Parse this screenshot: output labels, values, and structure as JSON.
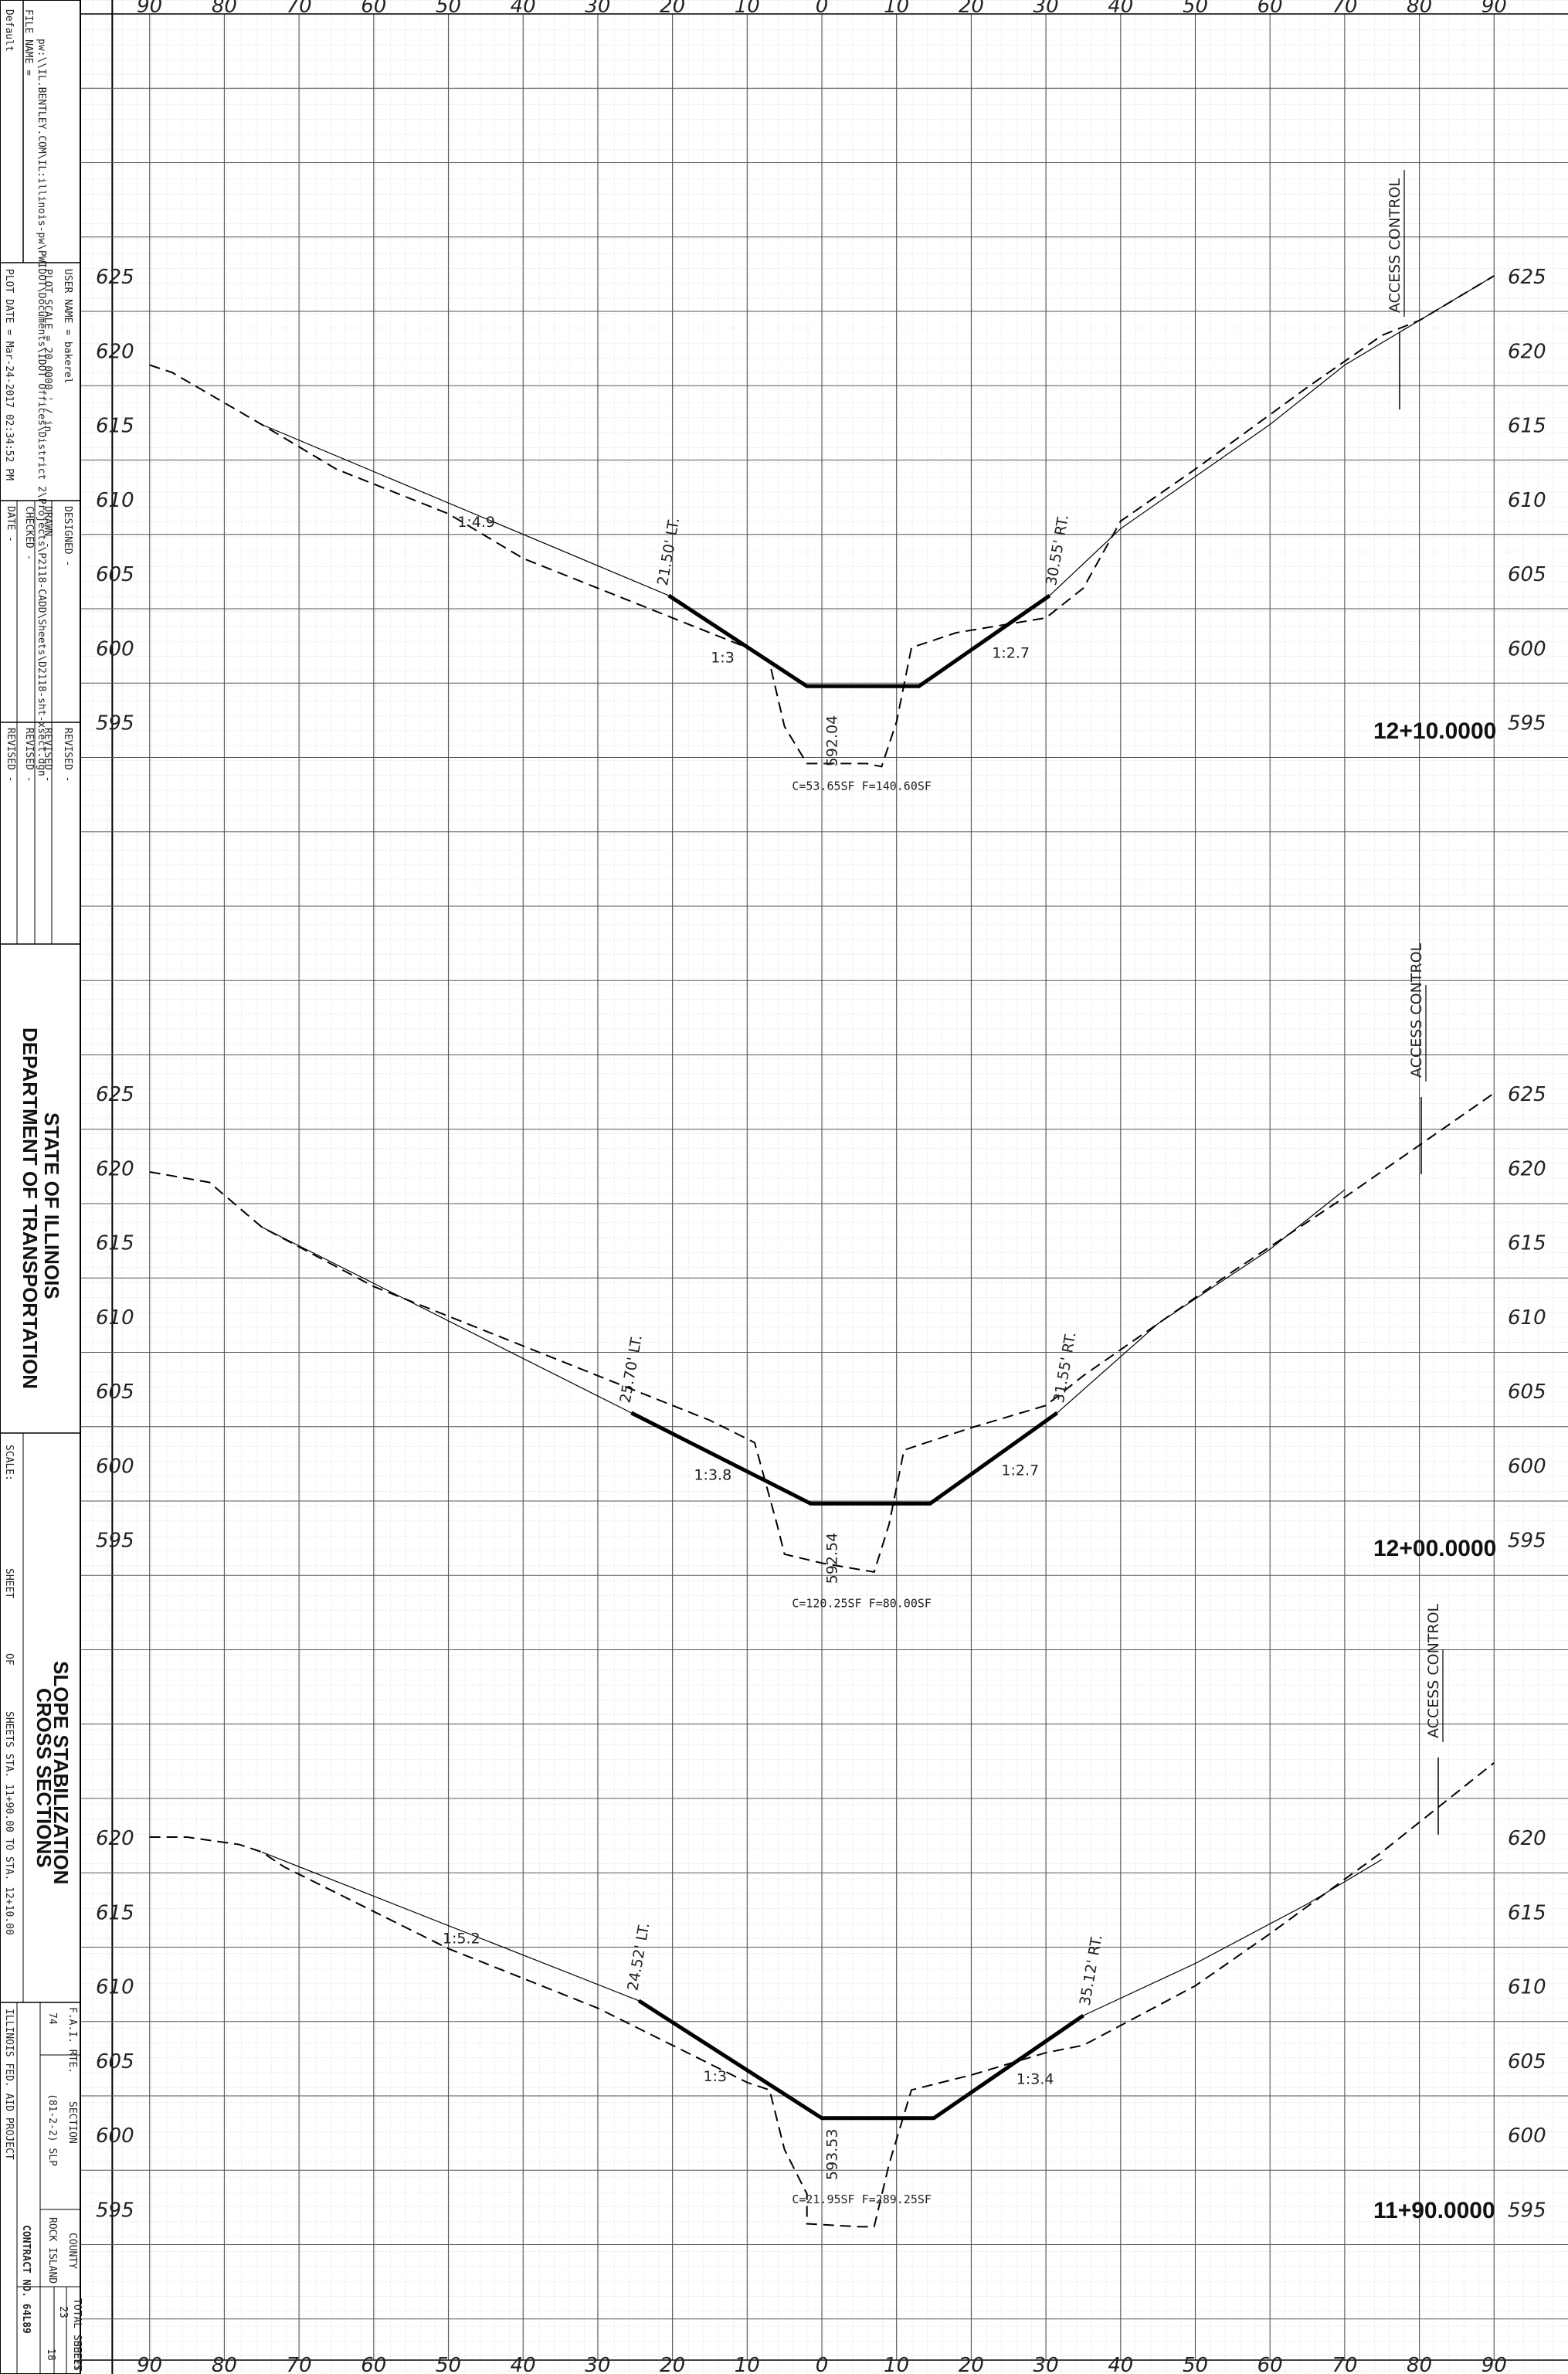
{
  "x_axis_labels": [
    "90",
    "80",
    "70",
    "60",
    "50",
    "40",
    "30",
    "20",
    "10",
    "0",
    "10",
    "20",
    "30",
    "40",
    "50",
    "60",
    "70",
    "80",
    "90"
  ],
  "sections": [
    {
      "station": "12+10.0000",
      "elevations": [
        "625",
        "620",
        "615",
        "610",
        "605",
        "600",
        "595"
      ],
      "left_point": "21.50' LT.",
      "right_point": "30.55' RT.",
      "left_slope": "1:3",
      "right_slope": "1:2.7",
      "upper_slope": "1:4.9",
      "ditch_elev": "592.04",
      "quantities": "C=53.65SF  F=140.60SF",
      "access": "ACCESS CONTROL",
      "proposed": [
        [
          -20.5,
          603.5
        ],
        [
          -2,
          597.4
        ],
        [
          13,
          597.4
        ],
        [
          30.5,
          603.5
        ]
      ],
      "existing": [
        [
          -90,
          619
        ],
        [
          -87,
          618.5
        ],
        [
          -75,
          615
        ],
        [
          -65,
          612
        ],
        [
          -50,
          609
        ],
        [
          -40,
          606
        ],
        [
          -30,
          604
        ],
        [
          -20,
          602
        ],
        [
          -10,
          600
        ],
        [
          -7,
          599
        ],
        [
          -5,
          594.7
        ],
        [
          -2,
          592.2
        ],
        [
          6,
          592.2
        ],
        [
          8,
          592
        ],
        [
          10,
          595
        ],
        [
          12,
          600
        ],
        [
          18,
          601
        ],
        [
          30,
          602
        ],
        [
          35,
          604
        ],
        [
          40,
          608.5
        ],
        [
          50,
          612
        ],
        [
          65,
          617.5
        ],
        [
          75,
          621
        ],
        [
          80,
          622
        ],
        [
          85,
          623.5
        ],
        [
          90,
          625
        ]
      ],
      "existing_upper": [
        [
          -75,
          615
        ],
        [
          -20.5,
          603.5
        ]
      ],
      "existing_right_upper": [
        [
          30.5,
          603.5
        ],
        [
          40,
          608
        ],
        [
          50,
          611.5
        ],
        [
          60,
          615
        ],
        [
          70,
          619
        ],
        [
          80,
          622
        ],
        [
          90,
          625
        ]
      ]
    },
    {
      "station": "12+00.0000",
      "elevations": [
        "625",
        "620",
        "615",
        "610",
        "605",
        "600",
        "595"
      ],
      "left_point": "25.70' LT.",
      "right_point": "31.55' RT.",
      "left_slope": "1:3.8",
      "right_slope": "1:2.7",
      "upper_slope": "",
      "ditch_elev": "592.54",
      "quantities": "C=120.25SF  F=80.00SF",
      "access": "ACCESS CONTROL",
      "proposed": [
        [
          -25.5,
          603.5
        ],
        [
          -1.5,
          597.4
        ],
        [
          14.5,
          597.4
        ],
        [
          31.5,
          603.5
        ]
      ],
      "existing": [
        [
          -90,
          619.7
        ],
        [
          -82,
          619
        ],
        [
          -75,
          616
        ],
        [
          -60,
          612
        ],
        [
          -45,
          609
        ],
        [
          -25,
          605
        ],
        [
          -15,
          603
        ],
        [
          -9,
          601.5
        ],
        [
          -6,
          596
        ],
        [
          -5,
          594
        ],
        [
          0,
          593.4
        ],
        [
          7,
          592.8
        ],
        [
          9,
          596
        ],
        [
          11,
          601
        ],
        [
          20,
          602.5
        ],
        [
          30,
          604
        ],
        [
          35,
          606
        ],
        [
          45,
          609.5
        ],
        [
          55,
          613
        ],
        [
          70,
          618
        ],
        [
          80,
          621.5
        ],
        [
          90,
          625
        ]
      ],
      "existing_upper": [
        [
          -75,
          616
        ],
        [
          -25.5,
          603.5
        ]
      ],
      "existing_right_upper": [
        [
          31.5,
          603.5
        ],
        [
          45,
          609.5
        ],
        [
          60,
          614.5
        ],
        [
          70,
          618.5
        ]
      ]
    },
    {
      "station": "11+90.0000",
      "elevations": [
        "620",
        "615",
        "610",
        "605",
        "600",
        "595"
      ],
      "left_point": "24.52' LT.",
      "right_point": "35.12' RT.",
      "left_slope": "1:3",
      "right_slope": "1:3.4",
      "upper_slope": "1:5.2",
      "ditch_elev": "593.53",
      "quantities": "C=21.95SF  F=289.25SF",
      "access": "ACCESS CONTROL",
      "proposed": [
        [
          -24.5,
          609
        ],
        [
          0,
          601.1
        ],
        [
          15,
          601.1
        ],
        [
          35,
          608
        ]
      ],
      "existing": [
        [
          -90,
          620
        ],
        [
          -85,
          620
        ],
        [
          -78,
          619.5
        ],
        [
          -75,
          619
        ],
        [
          -72,
          618
        ],
        [
          -60,
          615
        ],
        [
          -50,
          612.5
        ],
        [
          -30,
          608.5
        ],
        [
          -20,
          606
        ],
        [
          -10,
          603.5
        ],
        [
          -7,
          603
        ],
        [
          -5,
          599
        ],
        [
          -2,
          596
        ],
        [
          -2,
          594
        ],
        [
          5,
          593.8
        ],
        [
          7,
          593.8
        ],
        [
          9,
          598
        ],
        [
          12,
          603
        ],
        [
          20,
          604
        ],
        [
          30,
          605.5
        ],
        [
          35,
          606
        ],
        [
          50,
          610
        ],
        [
          60,
          613.5
        ],
        [
          75,
          619
        ],
        [
          80,
          621
        ],
        [
          90,
          625
        ]
      ],
      "existing_upper": [
        [
          -75,
          619
        ],
        [
          -24.5,
          609
        ]
      ],
      "existing_right_upper": [
        [
          35,
          608
        ],
        [
          50,
          611.5
        ],
        [
          65,
          615.5
        ],
        [
          75,
          618.5
        ]
      ]
    }
  ],
  "title_block": {
    "file_name": "FILE NAME =",
    "file_path": "pw:\\\\IL.BENTLEY.COM\\IL:illinois-pw\\PWIDOT\\Documents\\IDOT Offices\\District 2\\Projects\\P2118-CADD\\Sheets\\D2118-sht-xsect.dgn",
    "default": "Default",
    "user_name": "USER NAME = bakerel",
    "plot_scale": "PLOT SCALE = 20.0000 ' / in.",
    "plot_date": "PLOT DATE = Mar-24-2017 02:34:52 PM",
    "designed": "DESIGNED  -",
    "drawn": "DRAWN  -",
    "checked": "CHECKED  -",
    "date": "DATE  -",
    "revised": "REVISED  -",
    "agency1": "STATE OF ILLINOIS",
    "agency2": "DEPARTMENT OF TRANSPORTATION",
    "scale": "SCALE:",
    "sheet": "SHEET",
    "of": "OF",
    "sheets": "SHEETS",
    "sta_range": "STA. 11+90.00   TO STA. 12+10.00",
    "title1": "SLOPE STABILIZATION",
    "title2": "CROSS SECTIONS",
    "fai_rte": "F.A.I. RTE.",
    "rte": "74",
    "section_hdr": "SECTION",
    "section": "(81-2-2) SLP",
    "county_hdr": "COUNTY",
    "county": "ROCK ISLAND",
    "total_hdr": "TOTAL SHEETS",
    "total": "23",
    "sheet_no_hdr": "SHEET NO.",
    "sheet_no": "18",
    "contract": "CONTRACT NO. 64L89",
    "project": "ILLINOIS FED. AID PROJECT"
  }
}
